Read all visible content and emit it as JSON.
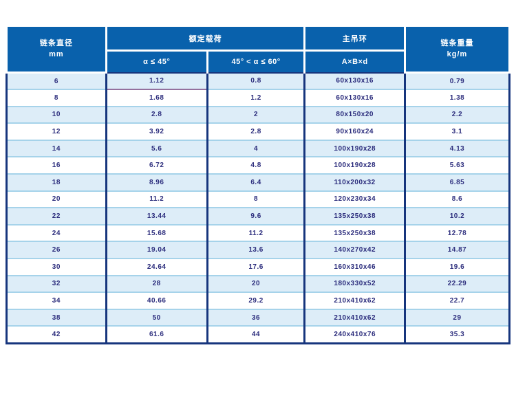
{
  "colors": {
    "header_bg": "#0961ac",
    "header_text": "#ffffff",
    "row_alt_bg": "#ddedf8",
    "row_bg": "#ffffff",
    "grid_dark_navy": "#16357d",
    "grid_light_blue": "#a6d3ea",
    "purple_artifact_line": "#94719e",
    "body_text": "#2b2c7c"
  },
  "table": {
    "header": {
      "diameter": {
        "line1": "链条直径",
        "line2": "mm"
      },
      "rated_load": {
        "label": "额定载荷",
        "sub1": "α ≤ 45°",
        "sub2": "45° < α ≤ 60°"
      },
      "master_link": {
        "label": "主吊环",
        "sub": "A×B×d"
      },
      "weight": {
        "line1": "链条重量",
        "line2": "kg/m"
      }
    },
    "rows": [
      [
        "6",
        "1.12",
        "0.8",
        "60x130x16",
        "0.79"
      ],
      [
        "8",
        "1.68",
        "1.2",
        "60x130x16",
        "1.38"
      ],
      [
        "10",
        "2.8",
        "2",
        "80x150x20",
        "2.2"
      ],
      [
        "12",
        "3.92",
        "2.8",
        "90x160x24",
        "3.1"
      ],
      [
        "14",
        "5.6",
        "4",
        "100x190x28",
        "4.13"
      ],
      [
        "16",
        "6.72",
        "4.8",
        "100x190x28",
        "5.63"
      ],
      [
        "18",
        "8.96",
        "6.4",
        "110x200x32",
        "6.85"
      ],
      [
        "20",
        "11.2",
        "8",
        "120x230x34",
        "8.6"
      ],
      [
        "22",
        "13.44",
        "9.6",
        "135x250x38",
        "10.2"
      ],
      [
        "24",
        "15.68",
        "11.2",
        "135x250x38",
        "12.78"
      ],
      [
        "26",
        "19.04",
        "13.6",
        "140x270x42",
        "14.87"
      ],
      [
        "30",
        "24.64",
        "17.6",
        "160x310x46",
        "19.6"
      ],
      [
        "32",
        "28",
        "20",
        "180x330x52",
        "22.29"
      ],
      [
        "34",
        "40.66",
        "29.2",
        "210x410x62",
        "22.7"
      ],
      [
        "38",
        "50",
        "36",
        "210x410x62",
        "29"
      ],
      [
        "42",
        "61.6",
        "44",
        "240x410x76",
        "35.3"
      ]
    ]
  }
}
